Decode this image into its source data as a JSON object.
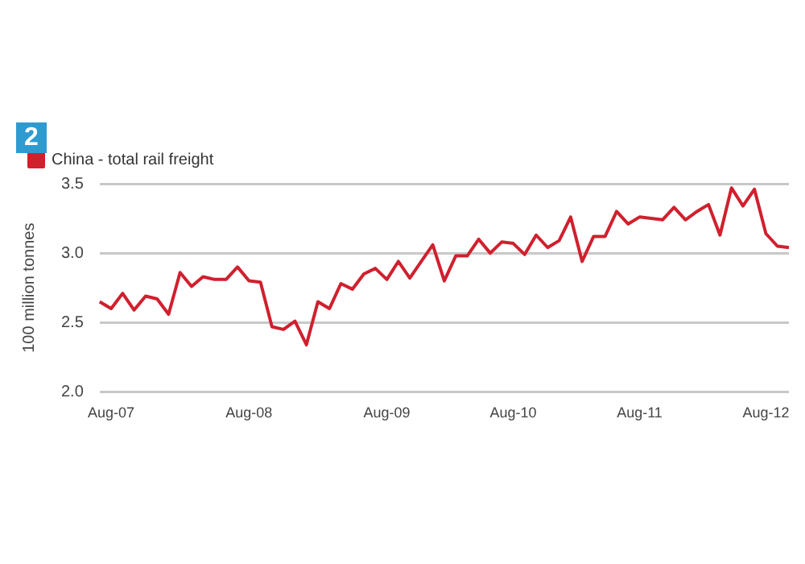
{
  "chart_data": {
    "type": "line",
    "annotations": [
      "2"
    ],
    "ylabel": "100 million tonnes",
    "categories": [
      null,
      "Aug-07",
      null,
      null,
      null,
      null,
      null,
      null,
      null,
      null,
      null,
      null,
      null,
      "Aug-08",
      null,
      null,
      null,
      null,
      null,
      null,
      null,
      null,
      null,
      null,
      null,
      "Aug-09",
      null,
      null,
      null,
      null,
      null,
      null,
      null,
      null,
      null,
      null,
      "Aug-10",
      null,
      null,
      null,
      null,
      null,
      null,
      null,
      null,
      null,
      null,
      "Aug-11",
      null,
      null,
      null,
      null,
      null,
      null,
      null,
      null,
      null,
      null,
      "Aug-12",
      null,
      null
    ],
    "series": [
      {
        "name": "China - total rail freight",
        "color": "#d0202e",
        "values": [
          2.65,
          2.6,
          2.71,
          2.59,
          2.69,
          2.67,
          2.56,
          2.86,
          2.76,
          2.83,
          2.81,
          2.81,
          2.9,
          2.8,
          2.79,
          2.47,
          2.45,
          2.51,
          2.34,
          2.65,
          2.6,
          2.78,
          2.74,
          2.85,
          2.89,
          2.81,
          2.94,
          2.82,
          2.94,
          3.06,
          2.8,
          2.98,
          2.98,
          3.1,
          3.0,
          3.08,
          3.07,
          2.99,
          3.13,
          3.04,
          3.09,
          3.26,
          2.94,
          3.12,
          3.12,
          3.3,
          3.21,
          3.26,
          3.25,
          3.24,
          3.33,
          3.24,
          3.3,
          3.35,
          3.13,
          3.47,
          3.34,
          3.46,
          3.14,
          3.05,
          3.04
        ]
      }
    ],
    "ylim": [
      2.0,
      3.5
    ],
    "yticks": [
      {
        "value": 2,
        "label": "2.0"
      },
      {
        "value": 2.5,
        "label": "2.5"
      },
      {
        "value": 3,
        "label": "3.0"
      },
      {
        "value": 3.5,
        "label": "3.5"
      }
    ],
    "grid": "y",
    "legend": "top left",
    "marker": "none",
    "line_style": "solid"
  }
}
